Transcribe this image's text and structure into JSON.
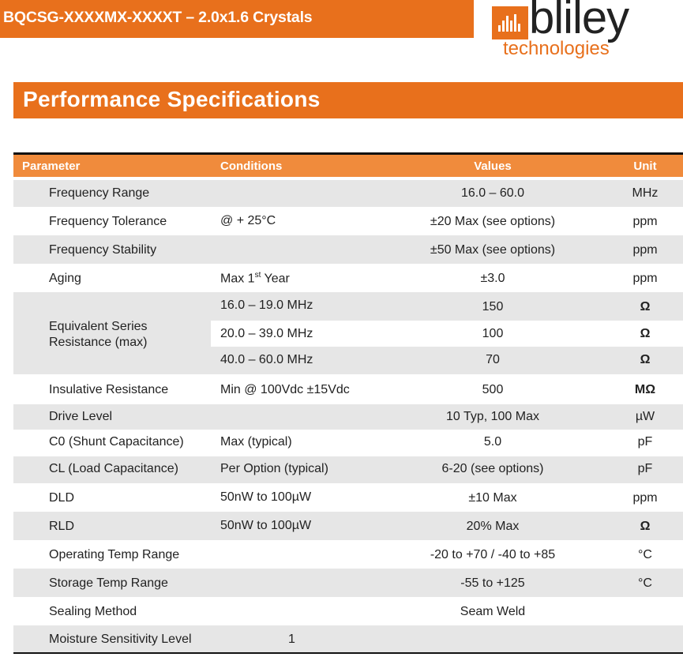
{
  "header": {
    "title": "BQCSG-XXXXMX-XXXXT –  2.0x1.6 Crystals",
    "logo_word": "bliley",
    "logo_sub": "technologies"
  },
  "section": {
    "title": "Performance Specifications"
  },
  "table": {
    "columns": [
      "Parameter",
      "Conditions",
      "Values",
      "Unit"
    ],
    "rows": [
      {
        "param": "Frequency Range",
        "cond": "",
        "value": "16.0 – 60.0",
        "unit": "MHz"
      },
      {
        "param": "Frequency Tolerance",
        "cond": "@ + 25°C",
        "value": "±20 Max (see options)",
        "unit": "ppm"
      },
      {
        "param": "Frequency Stability",
        "cond": "",
        "value": "±50 Max (see options)",
        "unit": "ppm"
      },
      {
        "param": "Aging",
        "cond": "Max 1",
        "cond_sup": "st",
        "cond_after": " Year",
        "value": "±3.0",
        "unit": "ppm"
      }
    ],
    "esr": {
      "param_line1": "Equivalent Series",
      "param_line2": "Resistance (max)",
      "subrows": [
        {
          "cond": "16.0 – 19.0 MHz",
          "value": "150",
          "unit": "Ω"
        },
        {
          "cond": "20.0 – 39.0 MHz",
          "value": "100",
          "unit": "Ω"
        },
        {
          "cond": "40.0 – 60.0 MHz",
          "value": "70",
          "unit": "Ω"
        }
      ]
    },
    "rows2": [
      {
        "param": "Insulative Resistance",
        "cond": "Min @ 100Vdc ±15Vdc",
        "value": "500",
        "unit": "MΩ"
      },
      {
        "param": "Drive Level",
        "cond": "",
        "value": "10 Typ, 100 Max",
        "unit": "µW"
      },
      {
        "param": "C0 (Shunt Capacitance)",
        "cond": "Max (typical)",
        "value": "5.0",
        "unit": "pF"
      },
      {
        "param": "CL (Load Capacitance)",
        "cond": "Per Option (typical)",
        "value": "6-20 (see options)",
        "unit": "pF"
      },
      {
        "param": "DLD",
        "cond": "50nW to 100µW",
        "value": "±10 Max",
        "unit": "ppm"
      },
      {
        "param": "RLD",
        "cond": "50nW to 100µW",
        "value": "20% Max",
        "unit": "Ω"
      },
      {
        "param": "Operating Temp Range",
        "cond": "",
        "value": "-20 to +70 / -40 to +85",
        "unit": "°C"
      },
      {
        "param": "Storage Temp Range",
        "cond": "",
        "value": "-55 to +125",
        "unit": "°C"
      },
      {
        "param": "Sealing Method",
        "cond": "",
        "value": "Seam Weld",
        "unit": ""
      },
      {
        "param": "Moisture Sensitivity Level",
        "cond": "1",
        "value": "",
        "unit": ""
      }
    ]
  },
  "colors": {
    "accent": "#e8701c",
    "header_row": "#f08b3c",
    "shade": "#e6e6e6"
  }
}
